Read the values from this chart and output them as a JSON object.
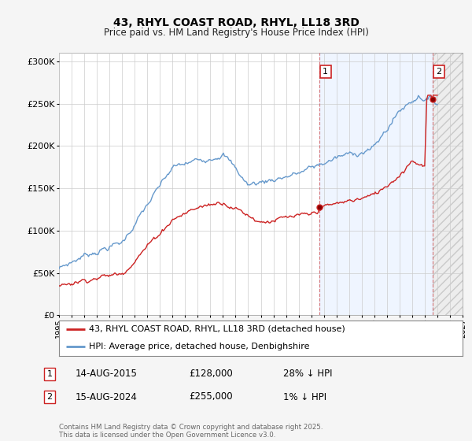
{
  "title": "43, RHYL COAST ROAD, RHYL, LL18 3RD",
  "subtitle": "Price paid vs. HM Land Registry's House Price Index (HPI)",
  "background_color": "#f5f5f5",
  "plot_bg_color": "#ffffff",
  "hpi_color": "#6699cc",
  "price_color": "#cc2222",
  "ylim": [
    0,
    310000
  ],
  "yticks": [
    0,
    50000,
    100000,
    150000,
    200000,
    250000,
    300000
  ],
  "ytick_labels": [
    "£0",
    "£50K",
    "£100K",
    "£150K",
    "£200K",
    "£250K",
    "£300K"
  ],
  "x_start_year": 1995,
  "x_end_year": 2027,
  "sale1_year": 2015.617,
  "sale1_price": 128000,
  "sale2_year": 2024.617,
  "sale2_price": 255000,
  "legend_property": "43, RHYL COAST ROAD, RHYL, LL18 3RD (detached house)",
  "legend_hpi": "HPI: Average price, detached house, Denbighshire",
  "sale1_date": "14-AUG-2015",
  "sale1_amount": "£128,000",
  "sale1_hpi_diff": "28% ↓ HPI",
  "sale2_date": "15-AUG-2024",
  "sale2_amount": "£255,000",
  "sale2_hpi_diff": "1% ↓ HPI",
  "footer": "Contains HM Land Registry data © Crown copyright and database right 2025.\nThis data is licensed under the Open Government Licence v3.0."
}
